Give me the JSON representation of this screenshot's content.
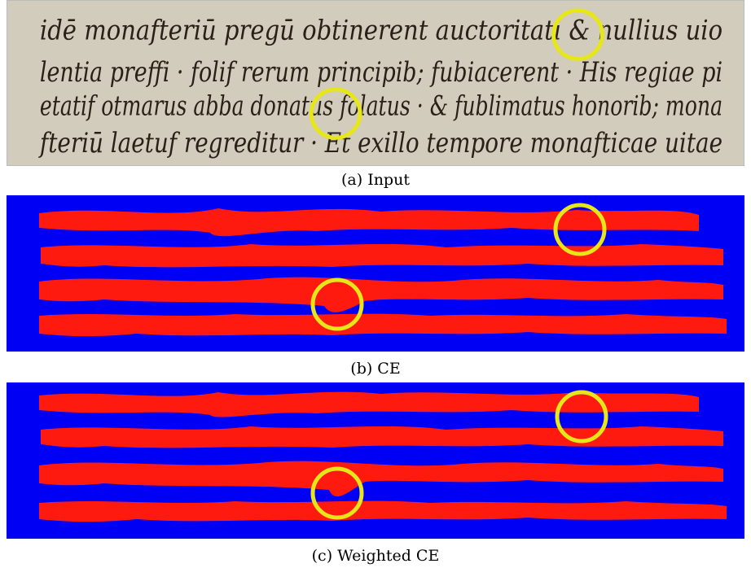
{
  "panels": [
    {
      "id": "input",
      "caption": "(a) Input",
      "kind": "manuscript",
      "lines": [
        "idē monafteriū pregū obtinerent auctoritati & nullius uio",
        "lentia preffi · folif rerum principib; fubiacerent · His regiae pi",
        "etatif otmarus abba donatus folatus · & fublimatus honorib; mona",
        "fteriū laetuf regreditur · Et exillo tempore monafticae uitae"
      ]
    },
    {
      "id": "ce",
      "caption": "(b) CE",
      "kind": "mask"
    },
    {
      "id": "weighted-ce",
      "caption": "(c) Weighted CE",
      "kind": "mask"
    }
  ],
  "colors": {
    "parchment": "#d8d4c4",
    "ink": "#2a2018",
    "background_class": "#0000f4",
    "text_class": "#ff1a10",
    "highlight_circle": "#e6e619"
  }
}
